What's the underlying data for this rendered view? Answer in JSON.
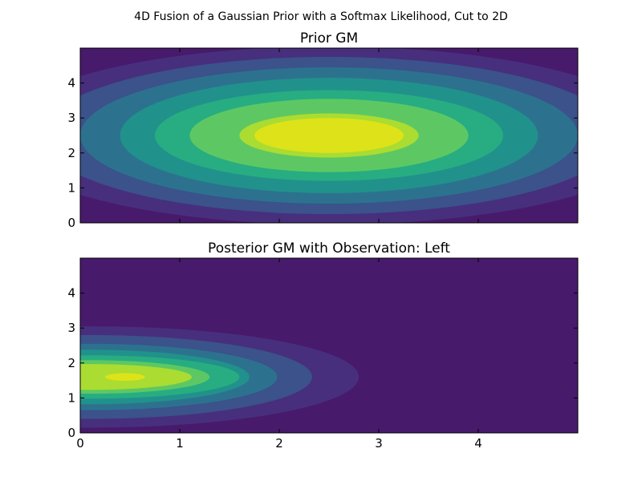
{
  "figure": {
    "suptitle": "4D Fusion of a Gaussian Prior with a Softmax Likelihood, Cut to 2D"
  },
  "chart_data": [
    {
      "type": "heatmap",
      "subtype": "filled-contour",
      "title": "Prior GM",
      "xlabel": "",
      "ylabel": "",
      "xlim": [
        0,
        5
      ],
      "ylim": [
        0,
        5
      ],
      "yticks": [
        0,
        1,
        2,
        3,
        4
      ],
      "yticklabels": [
        "0",
        "1",
        "2",
        "3",
        "4"
      ],
      "xticks": [
        0,
        1,
        2,
        3,
        4
      ],
      "xticklabels": [],
      "background_color": "#481a6c",
      "contours": [
        {
          "level": 1,
          "center": [
            2.5,
            2.5
          ],
          "rx": 3.35,
          "ry": 2.55,
          "color": "#472f7d"
        },
        {
          "level": 2,
          "center": [
            2.5,
            2.5
          ],
          "rx": 2.9,
          "ry": 2.25,
          "color": "#3b528b"
        },
        {
          "level": 3,
          "center": [
            2.5,
            2.5
          ],
          "rx": 2.5,
          "ry": 1.95,
          "color": "#2c728e"
        },
        {
          "level": 4,
          "center": [
            2.5,
            2.5
          ],
          "rx": 2.1,
          "ry": 1.65,
          "color": "#21918c"
        },
        {
          "level": 5,
          "center": [
            2.5,
            2.5
          ],
          "rx": 1.75,
          "ry": 1.3,
          "color": "#27ad81"
        },
        {
          "level": 6,
          "center": [
            2.5,
            2.5
          ],
          "rx": 1.4,
          "ry": 1.05,
          "color": "#5dc863"
        },
        {
          "level": 7,
          "center": [
            2.5,
            2.5
          ],
          "rx": 0.9,
          "ry": 0.63,
          "color": "#aadc32"
        },
        {
          "level": 8,
          "center": [
            2.5,
            2.5
          ],
          "rx": 0.75,
          "ry": 0.5,
          "color": "#dde318"
        }
      ]
    },
    {
      "type": "heatmap",
      "subtype": "filled-contour",
      "title": "Posterior GM with Observation: Left",
      "xlabel": "",
      "ylabel": "",
      "xlim": [
        0,
        5
      ],
      "ylim": [
        0,
        5
      ],
      "yticks": [
        0,
        1,
        2,
        3,
        4
      ],
      "yticklabels": [
        "0",
        "1",
        "2",
        "3",
        "4"
      ],
      "xticks": [
        0,
        1,
        2,
        3,
        4
      ],
      "xticklabels": [
        "0",
        "1",
        "2",
        "3",
        "4"
      ],
      "background_color": "#481a6c",
      "contours": [
        {
          "level": 1,
          "center": [
            0.1,
            1.6
          ],
          "rx": 2.7,
          "ry": 1.45,
          "color": "#472f7d"
        },
        {
          "level": 2,
          "center": [
            0.1,
            1.6
          ],
          "rx": 2.23,
          "ry": 1.2,
          "color": "#3b528b"
        },
        {
          "level": 3,
          "center": [
            0.1,
            1.6
          ],
          "rx": 1.88,
          "ry": 0.95,
          "color": "#2c728e"
        },
        {
          "level": 4,
          "center": [
            0.1,
            1.6
          ],
          "rx": 1.6,
          "ry": 0.78,
          "color": "#21918c"
        },
        {
          "level": 5,
          "center": [
            0.1,
            1.6
          ],
          "rx": 1.5,
          "ry": 0.62,
          "color": "#27ad81"
        },
        {
          "level": 6,
          "center": [
            0.1,
            1.6
          ],
          "rx": 1.2,
          "ry": 0.48,
          "color": "#5dc863"
        },
        {
          "level": 7,
          "center": [
            0.1,
            1.6
          ],
          "rx": 1.02,
          "ry": 0.37,
          "color": "#aadc32"
        },
        {
          "level": 8,
          "center": [
            0.45,
            1.6
          ],
          "rx": 0.2,
          "ry": 0.11,
          "color": "#dde318"
        }
      ]
    }
  ]
}
